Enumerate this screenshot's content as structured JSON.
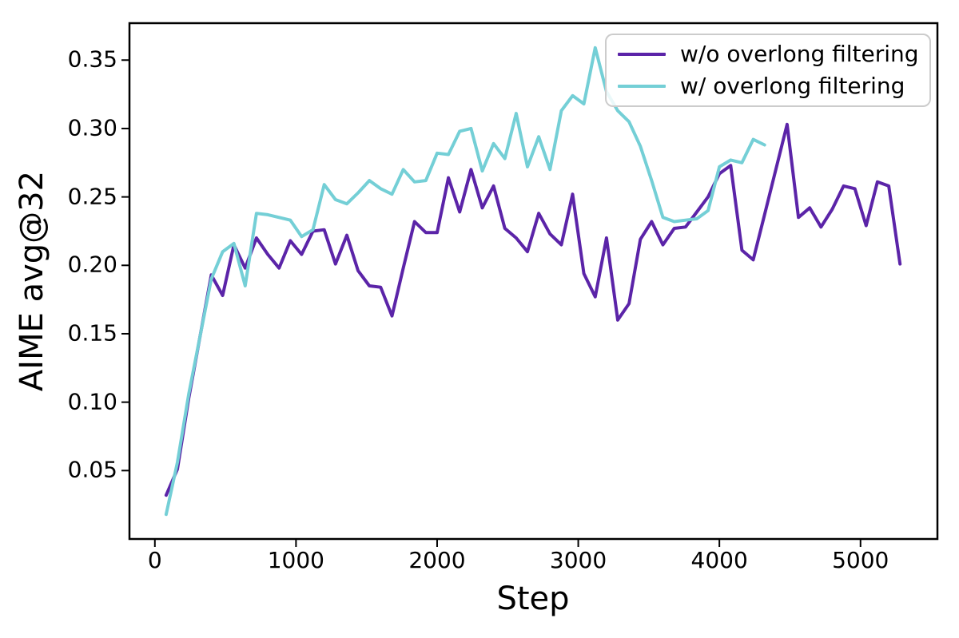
{
  "figure": {
    "background": "#ffffff",
    "axes_color": "#000000",
    "tick_color": "#000000"
  },
  "legend": {
    "position": "upper right",
    "border_color": "#cccccc"
  },
  "chart_data": {
    "type": "line",
    "title": "",
    "xlabel": "Step",
    "ylabel": "AIME avg@32",
    "xlim": [
      -180,
      5545
    ],
    "ylim": [
      0.0,
      0.377
    ],
    "x_ticks": [
      0,
      1000,
      2000,
      3000,
      4000,
      5000
    ],
    "y_ticks": [
      0.05,
      0.1,
      0.15,
      0.2,
      0.25,
      0.3,
      0.35
    ],
    "grid": false,
    "legend_position": "upper right",
    "series": [
      {
        "name": "w/o overlong filtering",
        "color": "#5B24A8",
        "steps": [
          80,
          160,
          240,
          320,
          400,
          480,
          560,
          640,
          720,
          800,
          880,
          960,
          1040,
          1120,
          1200,
          1280,
          1360,
          1440,
          1520,
          1600,
          1680,
          1760,
          1840,
          1920,
          2000,
          2080,
          2160,
          2240,
          2320,
          2400,
          2480,
          2560,
          2640,
          2720,
          2800,
          2880,
          2960,
          3040,
          3120,
          3200,
          3280,
          3360,
          3440,
          3520,
          3600,
          3680,
          3760,
          3840,
          3920,
          4000,
          4080,
          4160,
          4240,
          4320,
          4400,
          4480,
          4560,
          4640,
          4720,
          4800,
          4880,
          4960,
          5040,
          5120,
          5200,
          5280
        ],
        "values": [
          0.032,
          0.051,
          0.103,
          0.148,
          0.193,
          0.178,
          0.215,
          0.198,
          0.22,
          0.208,
          0.198,
          0.218,
          0.208,
          0.225,
          0.226,
          0.201,
          0.222,
          0.196,
          0.185,
          0.184,
          0.163,
          0.198,
          0.232,
          0.224,
          0.224,
          0.264,
          0.239,
          0.27,
          0.242,
          0.258,
          0.227,
          0.22,
          0.21,
          0.238,
          0.223,
          0.215,
          0.252,
          0.194,
          0.177,
          0.22,
          0.16,
          0.172,
          0.219,
          0.232,
          0.215,
          0.227,
          0.228,
          0.239,
          0.25,
          0.267,
          0.273,
          0.211,
          0.204,
          0.237,
          0.27,
          0.303,
          0.235,
          0.242,
          0.228,
          0.241,
          0.258,
          0.256,
          0.229,
          0.261,
          0.258,
          0.201
        ]
      },
      {
        "name": "w/ overlong filtering",
        "color": "#74CFD6",
        "steps": [
          80,
          160,
          240,
          320,
          400,
          480,
          560,
          640,
          720,
          800,
          880,
          960,
          1040,
          1120,
          1200,
          1280,
          1360,
          1440,
          1520,
          1600,
          1680,
          1760,
          1840,
          1920,
          2000,
          2080,
          2160,
          2240,
          2320,
          2400,
          2480,
          2560,
          2640,
          2720,
          2800,
          2880,
          2960,
          3040,
          3120,
          3200,
          3280,
          3360,
          3440,
          3520,
          3600,
          3680,
          3760,
          3840,
          3920,
          4000,
          4080,
          4160,
          4240,
          4320
        ],
        "values": [
          0.018,
          0.056,
          0.106,
          0.148,
          0.19,
          0.21,
          0.216,
          0.185,
          0.238,
          0.237,
          0.235,
          0.233,
          0.221,
          0.226,
          0.259,
          0.248,
          0.245,
          0.253,
          0.262,
          0.256,
          0.252,
          0.27,
          0.261,
          0.262,
          0.282,
          0.281,
          0.298,
          0.3,
          0.269,
          0.289,
          0.278,
          0.311,
          0.272,
          0.294,
          0.27,
          0.313,
          0.324,
          0.318,
          0.359,
          0.327,
          0.313,
          0.305,
          0.287,
          0.262,
          0.235,
          0.232,
          0.233,
          0.234,
          0.24,
          0.272,
          0.277,
          0.275,
          0.292,
          0.288
        ]
      }
    ]
  }
}
